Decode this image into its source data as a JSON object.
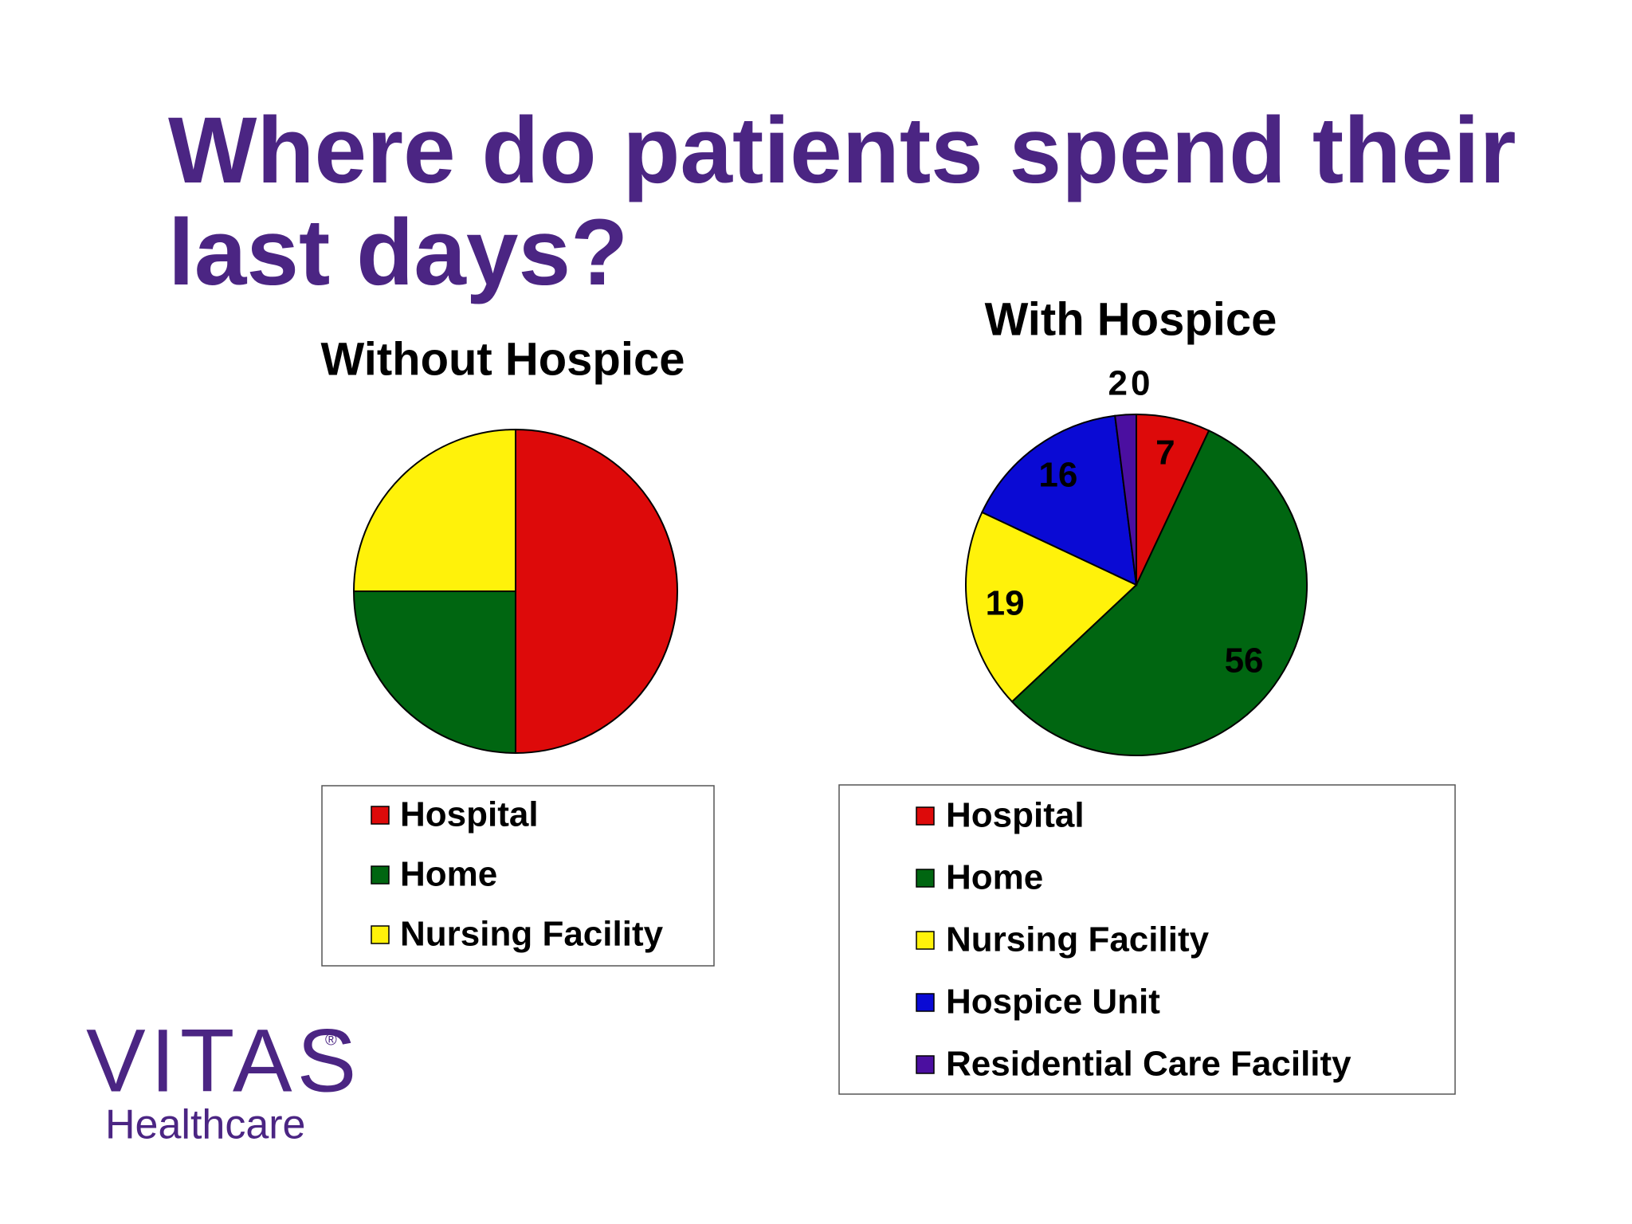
{
  "title": "Where do patients spend their last days?",
  "title_lines": [
    "Where do patients spend their",
    "last days?"
  ],
  "logo": {
    "name": "VITAS",
    "mark": "®",
    "subtitle": "Healthcare"
  },
  "chart_data": [
    {
      "type": "pie",
      "title": "Without Hospice",
      "categories": [
        "Hospital",
        "Home",
        "Nursing Facility"
      ],
      "values": [
        50,
        25,
        25
      ],
      "colors": [
        "#dd0a0a",
        "#006611",
        "#fff20a"
      ],
      "legend": true
    },
    {
      "type": "pie",
      "title": "With Hospice",
      "categories": [
        "Hospital",
        "Home",
        "Nursing Facility",
        "Hospice Unit",
        "Residential Care Facility"
      ],
      "values": [
        7,
        56,
        19,
        16,
        2
      ],
      "value_labels": [
        "7",
        "56",
        "19",
        "16",
        null
      ],
      "annotations": [
        "20"
      ],
      "colors": [
        "#dd0a0a",
        "#006611",
        "#fff20a",
        "#0a0ad4",
        "#4b0fa0"
      ],
      "legend": true
    }
  ]
}
